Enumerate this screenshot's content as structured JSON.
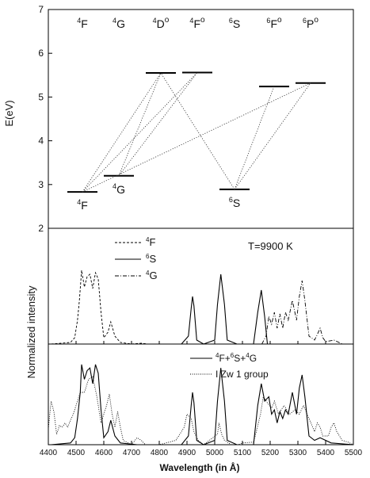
{
  "chart_data": [
    {
      "type": "energy-level-diagram",
      "ylabel": "E(eV)",
      "ylim": [
        2,
        7
      ],
      "yticks": [
        "2",
        "3",
        "4",
        "5",
        "6",
        "7"
      ],
      "columns": [
        {
          "term": "4F",
          "sup": "4",
          "base": "F",
          "odd": false
        },
        {
          "term": "4G",
          "sup": "4",
          "base": "G",
          "odd": false
        },
        {
          "term": "4Do",
          "sup": "4",
          "base": "D",
          "odd": true
        },
        {
          "term": "4Fo",
          "sup": "4",
          "base": "F",
          "odd": true
        },
        {
          "term": "6S",
          "sup": "6",
          "base": "S",
          "odd": false
        },
        {
          "term": "6Fo",
          "sup": "6",
          "base": "F",
          "odd": true
        },
        {
          "term": "6Po",
          "sup": "6",
          "base": "P",
          "odd": true
        }
      ],
      "levels": [
        {
          "id": "4F",
          "column": 0,
          "energy": 2.83,
          "label_sup": "4",
          "label_base": "F"
        },
        {
          "id": "4G",
          "column": 1,
          "energy": 3.2,
          "label_sup": "4",
          "label_base": "G"
        },
        {
          "id": "4Do",
          "column": 2,
          "energy": 5.55
        },
        {
          "id": "4Fo",
          "column": 3,
          "energy": 5.56
        },
        {
          "id": "6S",
          "column": 4,
          "energy": 2.89,
          "label_sup": "6",
          "label_base": "S"
        },
        {
          "id": "6Fo",
          "column": 5,
          "energy": 5.24
        },
        {
          "id": "6Po",
          "column": 6,
          "energy": 5.32
        }
      ],
      "transitions": [
        [
          "4F",
          "4Do"
        ],
        [
          "4F",
          "4Fo"
        ],
        [
          "4G",
          "4Do"
        ],
        [
          "4G",
          "4Fo"
        ],
        [
          "4F",
          "6Po"
        ],
        [
          "6S",
          "4Do"
        ],
        [
          "6S",
          "6Fo"
        ],
        [
          "6S",
          "6Po"
        ]
      ]
    },
    {
      "type": "line",
      "ylabel": "Normalized intensity",
      "annotation": "T=9900 K",
      "series": [
        {
          "name": "4F",
          "name_sup": "4",
          "name_base": "F",
          "style": "dashed",
          "x": [
            4410,
            4480,
            4495,
            4505,
            4512,
            4520,
            4530,
            4540,
            4550,
            4560,
            4570,
            4580,
            4590,
            4600,
            4615,
            4625,
            4640,
            4660,
            4700,
            4735,
            4760,
            4800
          ],
          "y": [
            0.0,
            0.02,
            0.08,
            0.3,
            0.55,
            0.93,
            0.72,
            0.85,
            0.88,
            0.7,
            0.9,
            0.82,
            0.4,
            0.08,
            0.15,
            0.28,
            0.1,
            0.02,
            0.0,
            0.01,
            0.0,
            0.0
          ]
        },
        {
          "name": "6S",
          "name_sup": "6",
          "name_base": "S",
          "style": "solid",
          "x": [
            4880,
            4905,
            4915,
            4920,
            4925,
            4935,
            4960,
            5000,
            5010,
            5022,
            5035,
            5045,
            5080,
            5140,
            5155,
            5168,
            5180,
            5190
          ],
          "y": [
            0.0,
            0.1,
            0.45,
            0.6,
            0.48,
            0.05,
            0.0,
            0.05,
            0.5,
            0.88,
            0.5,
            0.05,
            0.0,
            0.0,
            0.4,
            0.68,
            0.35,
            0.0
          ]
        },
        {
          "name": "4G",
          "name_sup": "4",
          "name_base": "G",
          "style": "dash-dot",
          "x": [
            5170,
            5185,
            5195,
            5205,
            5215,
            5225,
            5235,
            5245,
            5255,
            5265,
            5280,
            5295,
            5305,
            5315,
            5325,
            5340,
            5360,
            5370,
            5380,
            5390,
            5400,
            5430,
            5460
          ],
          "y": [
            0.0,
            0.1,
            0.35,
            0.25,
            0.4,
            0.2,
            0.38,
            0.2,
            0.4,
            0.3,
            0.55,
            0.3,
            0.6,
            0.8,
            0.55,
            0.1,
            0.05,
            0.12,
            0.2,
            0.08,
            0.03,
            0.05,
            0.0
          ]
        }
      ]
    },
    {
      "type": "line",
      "ylabel": "Normalized intensity",
      "xlabel": "Wavelength (in Å)",
      "xlim": [
        4400,
        5500
      ],
      "xticks": [
        "4400",
        "4500",
        "4600",
        "4700",
        "4800",
        "4900",
        "5000",
        "5100",
        "5200",
        "5300",
        "5400",
        "5500"
      ],
      "series": [
        {
          "name": "4F+6S+4G",
          "name_parts": [
            {
              "sup": "4",
              "base": "F+"
            },
            {
              "sup": "6",
              "base": "S+"
            },
            {
              "sup": "4",
              "base": "G"
            }
          ],
          "style": "solid",
          "x": [
            4410,
            4480,
            4495,
            4505,
            4515,
            4520,
            4530,
            4540,
            4550,
            4560,
            4570,
            4580,
            4590,
            4600,
            4615,
            4625,
            4640,
            4660,
            4720,
            4880,
            4905,
            4915,
            4920,
            4925,
            4935,
            4960,
            5000,
            5010,
            5022,
            5035,
            5045,
            5080,
            5140,
            5155,
            5168,
            5180,
            5195,
            5205,
            5215,
            5225,
            5235,
            5245,
            5255,
            5265,
            5280,
            5295,
            5305,
            5315,
            5325,
            5340,
            5360,
            5380,
            5420,
            5500
          ],
          "y": [
            0.0,
            0.02,
            0.08,
            0.3,
            0.6,
            0.92,
            0.75,
            0.85,
            0.88,
            0.7,
            0.92,
            0.82,
            0.4,
            0.08,
            0.15,
            0.28,
            0.1,
            0.02,
            0.0,
            0.0,
            0.1,
            0.45,
            0.6,
            0.48,
            0.05,
            0.0,
            0.05,
            0.5,
            0.88,
            0.5,
            0.05,
            0.0,
            0.0,
            0.45,
            0.7,
            0.5,
            0.55,
            0.35,
            0.4,
            0.25,
            0.38,
            0.3,
            0.4,
            0.35,
            0.6,
            0.35,
            0.65,
            0.8,
            0.55,
            0.1,
            0.05,
            0.08,
            0.02,
            0.0
          ]
        },
        {
          "name": "I Zw 1 group",
          "style": "dotted",
          "x": [
            4400,
            4410,
            4420,
            4430,
            4440,
            4450,
            4460,
            4470,
            4480,
            4490,
            4500,
            4515,
            4530,
            4545,
            4560,
            4575,
            4590,
            4610,
            4620,
            4630,
            4640,
            4650,
            4660,
            4670,
            4700,
            4720,
            4735,
            4750,
            4800,
            4860,
            4870,
            4890,
            4900,
            4915,
            4925,
            4940,
            4960,
            5010,
            5015,
            5025,
            5035,
            5060,
            5085,
            5100,
            5140,
            5150,
            5165,
            5175,
            5190,
            5205,
            5215,
            5230,
            5250,
            5270,
            5290,
            5305,
            5320,
            5340,
            5360,
            5370,
            5380,
            5390,
            5410,
            5420,
            5430,
            5440,
            5460,
            5480,
            5500
          ],
          "y": [
            0.18,
            0.5,
            0.38,
            0.12,
            0.22,
            0.2,
            0.25,
            0.2,
            0.28,
            0.35,
            0.45,
            0.6,
            0.6,
            0.75,
            0.78,
            0.55,
            0.25,
            0.45,
            0.58,
            0.35,
            0.2,
            0.38,
            0.2,
            0.05,
            0.0,
            0.08,
            0.05,
            0.0,
            0.0,
            0.05,
            0.1,
            0.2,
            0.35,
            0.3,
            0.15,
            0.05,
            0.0,
            0.12,
            0.25,
            0.12,
            0.05,
            0.0,
            0.0,
            0.02,
            0.03,
            0.15,
            0.35,
            0.55,
            0.48,
            0.42,
            0.5,
            0.35,
            0.45,
            0.35,
            0.4,
            0.35,
            0.45,
            0.3,
            0.15,
            0.25,
            0.2,
            0.1,
            0.1,
            0.2,
            0.25,
            0.15,
            0.05,
            0.03,
            0.0
          ]
        }
      ]
    }
  ]
}
